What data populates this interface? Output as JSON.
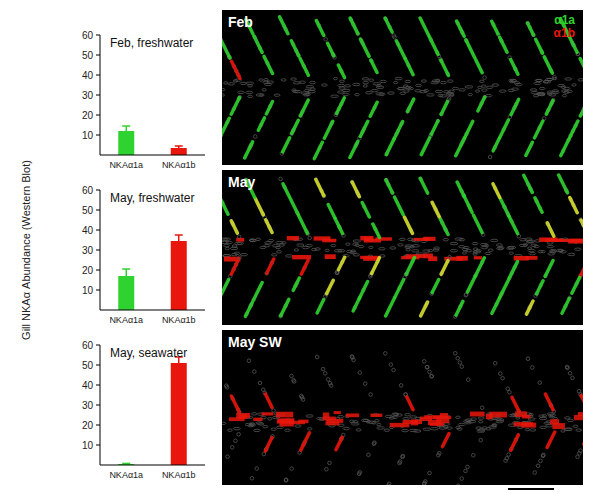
{
  "chart_data": [
    {
      "type": "bar",
      "title": "Feb, freshwater",
      "categories": [
        "NKAα1a",
        "NKAα1b"
      ],
      "values": [
        12,
        3.5
      ],
      "errors": [
        2.5,
        1
      ],
      "colors": [
        "#2fd32f",
        "#e8160c"
      ],
      "ylim": [
        0,
        60
      ],
      "yticks": [
        10,
        20,
        30,
        40,
        50,
        60
      ]
    },
    {
      "type": "bar",
      "title": "May, freshwater",
      "ylabel": "Gill NKAα Abundance (Western Blot)",
      "categories": [
        "NKAα1a",
        "NKAα1b"
      ],
      "values": [
        17,
        34.5
      ],
      "errors": [
        3.5,
        3
      ],
      "colors": [
        "#2fd32f",
        "#e8160c"
      ],
      "ylim": [
        0,
        60
      ],
      "yticks": [
        10,
        20,
        30,
        40,
        50,
        60
      ]
    },
    {
      "type": "bar",
      "title": "May, seawater",
      "categories": [
        "NKAα1a",
        "NKAα1b"
      ],
      "values": [
        0.5,
        51
      ],
      "errors": [
        0.3,
        3
      ],
      "colors": [
        "#2fd32f",
        "#e8160c"
      ],
      "ylim": [
        0,
        60
      ],
      "yticks": [
        10,
        20,
        30,
        40,
        50,
        60
      ]
    }
  ],
  "images": [
    {
      "label": "Feb",
      "legend": [
        {
          "name": "α1a",
          "color": "#2fd32f"
        },
        {
          "name": "α1b",
          "color": "#e8160c"
        }
      ]
    },
    {
      "label": "May"
    },
    {
      "label": "May SW"
    }
  ]
}
